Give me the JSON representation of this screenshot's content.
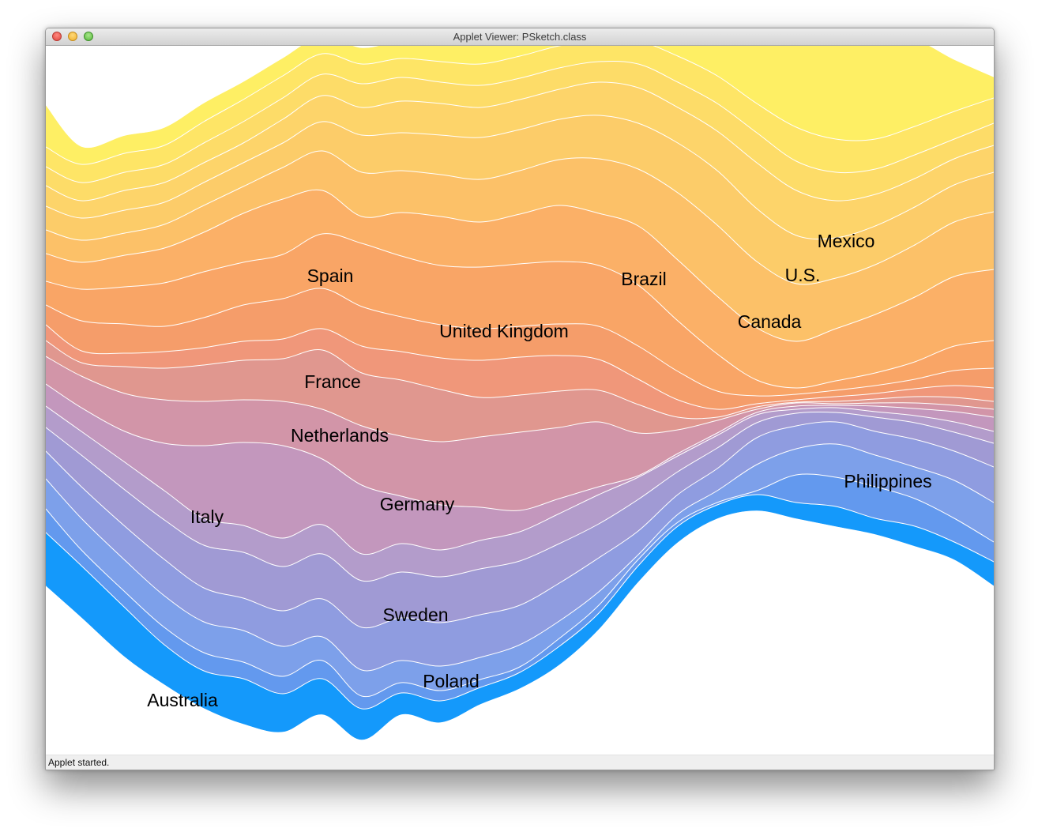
{
  "window": {
    "title": "Applet Viewer: PSketch.class",
    "status": "Applet started."
  },
  "chart_data": {
    "type": "area",
    "categories": [
      "Philippines",
      "Australia",
      "Poland",
      "Sweden",
      "Italy",
      "Germany",
      "Netherlands",
      "France",
      "United Kingdom",
      "Spain",
      "Brazil",
      "Canada",
      "U.S.",
      "Mexico"
    ],
    "series": [
      {
        "name": "Australia",
        "color": "#1499fb"
      },
      {
        "name": "Philippines",
        "color": "#6399ee"
      },
      {
        "name": "Poland",
        "color": "#7da0ea"
      },
      {
        "name": "Sweden",
        "color": "#8f9ce0"
      },
      {
        "name": "",
        "color": "#a09ad4"
      },
      {
        "name": "Italy",
        "color": "#b39ccb"
      },
      {
        "name": "",
        "color": "#c397bd"
      },
      {
        "name": "Germany",
        "color": "#d295a8"
      },
      {
        "name": "Netherlands",
        "color": "#e0978f"
      },
      {
        "name": "France",
        "color": "#f0977a"
      },
      {
        "name": "",
        "color": "#f59d6a"
      },
      {
        "name": "United Kingdom",
        "color": "#f9a566"
      },
      {
        "name": "Spain",
        "color": "#fbb067"
      },
      {
        "name": "Brazil",
        "color": "#fcc168"
      },
      {
        "name": "",
        "color": "#fccc69"
      },
      {
        "name": "Canada",
        "color": "#fdd46a"
      },
      {
        "name": "U.S.",
        "color": "#fddc68"
      },
      {
        "name": "",
        "color": "#fee566"
      },
      {
        "name": "Mexico",
        "color": "#feef64"
      }
    ]
  }
}
